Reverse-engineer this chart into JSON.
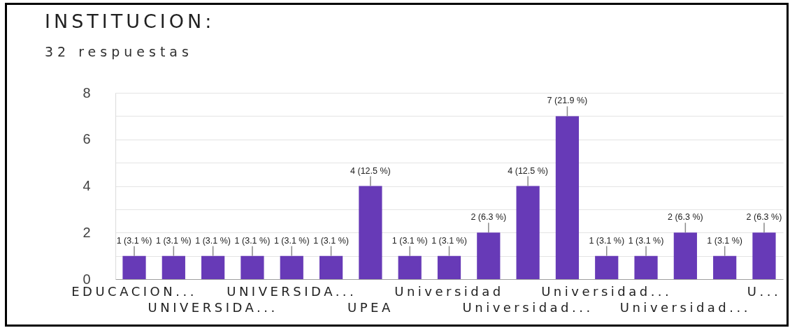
{
  "chart_data": {
    "type": "bar",
    "title": "INSTITUCION:",
    "subtitle": "32 respuestas",
    "categories": [
      "EDUCACION...",
      null,
      "UNIVERSIDA...",
      null,
      "UNIVERSIDA...",
      null,
      "UPEA",
      null,
      "Universidad",
      null,
      "Universidad...",
      null,
      "Universidad...",
      null,
      "Universidad...",
      null,
      "U..."
    ],
    "values": [
      1,
      1,
      1,
      1,
      1,
      1,
      4,
      1,
      1,
      2,
      4,
      7,
      1,
      1,
      2,
      1,
      2
    ],
    "value_labels": [
      "1 (3.1 %)",
      "1 (3.1 %)",
      "1 (3.1 %)",
      "1 (3.1 %)",
      "1 (3.1 %)",
      "1 (3.1 %)",
      "4 (12.5 %)",
      "1 (3.1 %)",
      "1 (3.1 %)",
      "2 (6.3 %)",
      "4 (12.5 %)",
      "7 (21.9 %)",
      "1 (3.1 %)",
      "1 (3.1 %)",
      "2 (6.3 %)",
      "1 (3.1 %)",
      "2 (6.3 %)"
    ],
    "color": "#673ab7",
    "ylim": [
      0,
      8
    ],
    "yticks": [
      0,
      {
        "value": 1,
        "label": null
      },
      2,
      {
        "value": 3,
        "label": null
      },
      4,
      {
        "value": 5,
        "label": null
      },
      6,
      {
        "value": 7,
        "label": null
      },
      8
    ],
    "grid": "y"
  }
}
